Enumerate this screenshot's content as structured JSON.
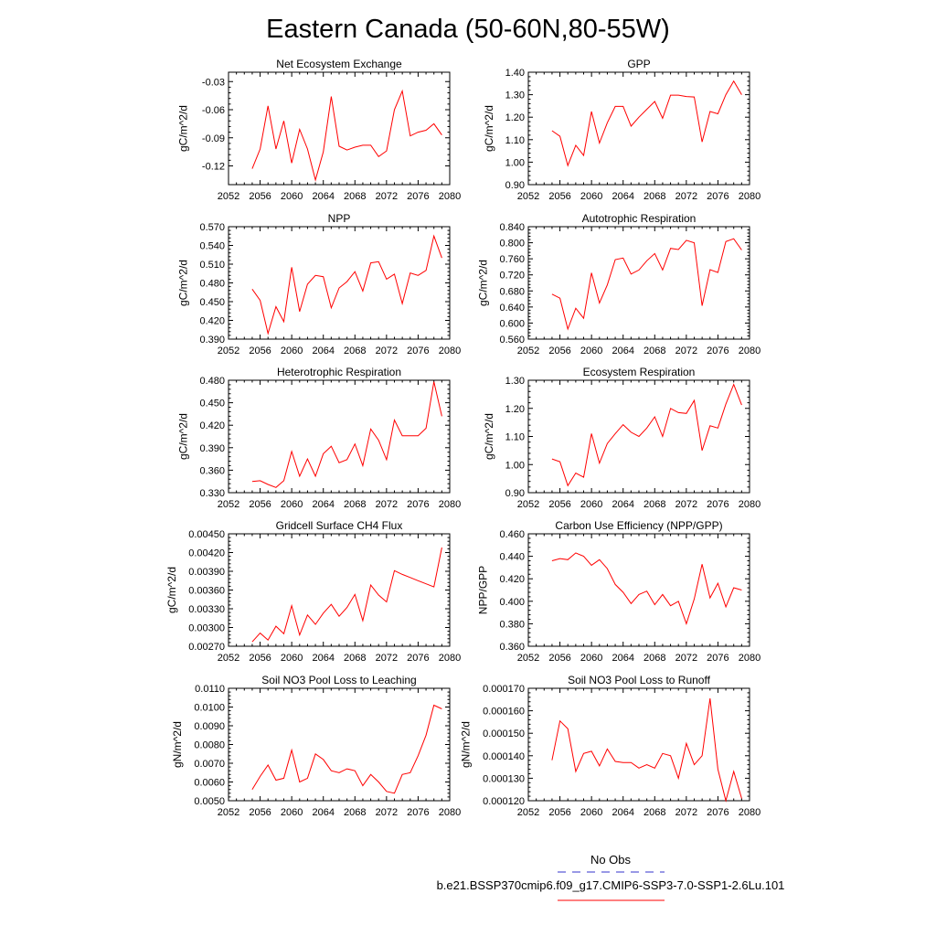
{
  "title": "Eastern Canada (50-60N,80-55W)",
  "legend": {
    "obs_label": "No Obs",
    "obs_color": "#3333cc",
    "model_label": "b.e21.BSSP370cmip6.f09_g17.CMIP6-SSP3-7.0-SSP1-2.6Lu.101",
    "model_color": "#ff0000"
  },
  "chart_data": [
    {
      "type": "line",
      "title": "Net Ecosystem Exchange",
      "ylabel": "gC/m^2/d",
      "xlim": [
        2052,
        2080
      ],
      "ylim": [
        -0.14,
        -0.02
      ],
      "xticks": [
        "2052",
        "2056",
        "2060",
        "2064",
        "2068",
        "2072",
        "2076",
        "2080"
      ],
      "yticks": [
        "-0.12",
        "-0.09",
        "-0.06",
        "-0.03"
      ],
      "x": [
        2055,
        2056,
        2057,
        2058,
        2059,
        2060,
        2061,
        2062,
        2063,
        2064,
        2065,
        2066,
        2067,
        2068,
        2069,
        2070,
        2071,
        2072,
        2073,
        2074,
        2075,
        2076,
        2077,
        2078,
        2079
      ],
      "values": [
        -0.123,
        -0.102,
        -0.056,
        -0.102,
        -0.072,
        -0.117,
        -0.081,
        -0.102,
        -0.135,
        -0.105,
        -0.046,
        -0.099,
        -0.103,
        -0.1,
        -0.098,
        -0.098,
        -0.11,
        -0.104,
        -0.06,
        -0.04,
        -0.088,
        -0.084,
        -0.082,
        -0.075,
        -0.087
      ]
    },
    {
      "type": "line",
      "title": "GPP",
      "ylabel": "gC/m^2/d",
      "xlim": [
        2052,
        2080
      ],
      "ylim": [
        0.9,
        1.4
      ],
      "xticks": [
        "2052",
        "2056",
        "2060",
        "2064",
        "2068",
        "2072",
        "2076",
        "2080"
      ],
      "yticks": [
        "0.90",
        "1.00",
        "1.10",
        "1.20",
        "1.30",
        "1.40"
      ],
      "x": [
        2055,
        2056,
        2057,
        2058,
        2059,
        2060,
        2061,
        2062,
        2063,
        2064,
        2065,
        2066,
        2067,
        2068,
        2069,
        2070,
        2071,
        2072,
        2073,
        2074,
        2075,
        2076,
        2077,
        2078,
        2079
      ],
      "values": [
        1.14,
        1.115,
        0.985,
        1.075,
        1.03,
        1.225,
        1.085,
        1.175,
        1.248,
        1.248,
        1.16,
        1.2,
        1.235,
        1.27,
        1.195,
        1.298,
        1.298,
        1.292,
        1.29,
        1.09,
        1.225,
        1.215,
        1.3,
        1.36,
        1.3
      ]
    },
    {
      "type": "line",
      "title": "NPP",
      "ylabel": "gC/m^2/d",
      "xlim": [
        2052,
        2080
      ],
      "ylim": [
        0.39,
        0.57
      ],
      "xticks": [
        "2052",
        "2056",
        "2060",
        "2064",
        "2068",
        "2072",
        "2076",
        "2080"
      ],
      "yticks": [
        "0.390",
        "0.420",
        "0.450",
        "0.480",
        "0.510",
        "0.540",
        "0.570"
      ],
      "x": [
        2055,
        2056,
        2057,
        2058,
        2059,
        2060,
        2061,
        2062,
        2063,
        2064,
        2065,
        2066,
        2067,
        2068,
        2069,
        2070,
        2071,
        2072,
        2073,
        2074,
        2075,
        2076,
        2077,
        2078,
        2079
      ],
      "values": [
        0.47,
        0.452,
        0.399,
        0.442,
        0.418,
        0.505,
        0.434,
        0.478,
        0.492,
        0.49,
        0.44,
        0.472,
        0.482,
        0.498,
        0.467,
        0.512,
        0.514,
        0.486,
        0.494,
        0.447,
        0.496,
        0.492,
        0.5,
        0.555,
        0.52
      ]
    },
    {
      "type": "line",
      "title": "Autotrophic Respiration",
      "ylabel": "gC/m^2/d",
      "xlim": [
        2052,
        2080
      ],
      "ylim": [
        0.56,
        0.84
      ],
      "xticks": [
        "2052",
        "2056",
        "2060",
        "2064",
        "2068",
        "2072",
        "2076",
        "2080"
      ],
      "yticks": [
        "0.560",
        "0.600",
        "0.640",
        "0.680",
        "0.720",
        "0.760",
        "0.800",
        "0.840"
      ],
      "x": [
        2055,
        2056,
        2057,
        2058,
        2059,
        2060,
        2061,
        2062,
        2063,
        2064,
        2065,
        2066,
        2067,
        2068,
        2069,
        2070,
        2071,
        2072,
        2073,
        2074,
        2075,
        2076,
        2077,
        2078,
        2079
      ],
      "values": [
        0.672,
        0.662,
        0.585,
        0.637,
        0.612,
        0.725,
        0.65,
        0.695,
        0.758,
        0.762,
        0.722,
        0.732,
        0.755,
        0.773,
        0.732,
        0.786,
        0.783,
        0.806,
        0.8,
        0.643,
        0.733,
        0.726,
        0.803,
        0.81,
        0.782
      ]
    },
    {
      "type": "line",
      "title": "Heterotrophic Respiration",
      "ylabel": "gC/m^2/d",
      "xlim": [
        2052,
        2080
      ],
      "ylim": [
        0.33,
        0.48
      ],
      "xticks": [
        "2052",
        "2056",
        "2060",
        "2064",
        "2068",
        "2072",
        "2076",
        "2080"
      ],
      "yticks": [
        "0.330",
        "0.360",
        "0.390",
        "0.420",
        "0.450",
        "0.480"
      ],
      "x": [
        2055,
        2056,
        2057,
        2058,
        2059,
        2060,
        2061,
        2062,
        2063,
        2064,
        2065,
        2066,
        2067,
        2068,
        2069,
        2070,
        2071,
        2072,
        2073,
        2074,
        2075,
        2076,
        2077,
        2078,
        2079
      ],
      "values": [
        0.345,
        0.346,
        0.341,
        0.337,
        0.346,
        0.385,
        0.352,
        0.375,
        0.352,
        0.382,
        0.392,
        0.37,
        0.374,
        0.395,
        0.366,
        0.415,
        0.4,
        0.374,
        0.427,
        0.406,
        0.406,
        0.406,
        0.416,
        0.478,
        0.432
      ]
    },
    {
      "type": "line",
      "title": "Ecosystem Respiration",
      "ylabel": "gC/m^2/d",
      "xlim": [
        2052,
        2080
      ],
      "ylim": [
        0.9,
        1.3
      ],
      "xticks": [
        "2052",
        "2056",
        "2060",
        "2064",
        "2068",
        "2072",
        "2076",
        "2080"
      ],
      "yticks": [
        "0.90",
        "1.00",
        "1.10",
        "1.20",
        "1.30"
      ],
      "x": [
        2055,
        2056,
        2057,
        2058,
        2059,
        2060,
        2061,
        2062,
        2063,
        2064,
        2065,
        2066,
        2067,
        2068,
        2069,
        2070,
        2071,
        2072,
        2073,
        2074,
        2075,
        2076,
        2077,
        2078,
        2079
      ],
      "values": [
        1.02,
        1.01,
        0.925,
        0.97,
        0.955,
        1.11,
        1.005,
        1.075,
        1.11,
        1.142,
        1.115,
        1.1,
        1.13,
        1.17,
        1.1,
        1.2,
        1.185,
        1.182,
        1.228,
        1.05,
        1.138,
        1.13,
        1.215,
        1.285,
        1.212
      ]
    },
    {
      "type": "line",
      "title": "Gridcell Surface CH4 Flux",
      "ylabel": "gC/m^2/d",
      "xlim": [
        2052,
        2080
      ],
      "ylim": [
        0.0027,
        0.0045
      ],
      "xticks": [
        "2052",
        "2056",
        "2060",
        "2064",
        "2068",
        "2072",
        "2076",
        "2080"
      ],
      "yticks": [
        "0.00270",
        "0.00300",
        "0.00330",
        "0.00360",
        "0.00390",
        "0.00420",
        "0.00450"
      ],
      "x": [
        2055,
        2056,
        2057,
        2058,
        2059,
        2060,
        2061,
        2062,
        2063,
        2064,
        2065,
        2066,
        2067,
        2068,
        2069,
        2070,
        2071,
        2072,
        2073,
        2074,
        2075,
        2076,
        2077,
        2078,
        2079
      ],
      "values": [
        0.00277,
        0.00291,
        0.0028,
        0.00302,
        0.0029,
        0.00335,
        0.00288,
        0.0032,
        0.00305,
        0.00323,
        0.00337,
        0.00318,
        0.00332,
        0.00353,
        0.00311,
        0.00368,
        0.00352,
        0.00341,
        0.00391,
        0.00385,
        0.0038,
        0.00375,
        0.0037,
        0.00365,
        0.00428
      ]
    },
    {
      "type": "line",
      "title": "Carbon Use Efficiency (NPP/GPP)",
      "ylabel": "NPP/GPP",
      "xlim": [
        2052,
        2080
      ],
      "ylim": [
        0.36,
        0.46
      ],
      "xticks": [
        "2052",
        "2056",
        "2060",
        "2064",
        "2068",
        "2072",
        "2076",
        "2080"
      ],
      "yticks": [
        "0.360",
        "0.380",
        "0.400",
        "0.420",
        "0.440",
        "0.460"
      ],
      "x": [
        2055,
        2056,
        2057,
        2058,
        2059,
        2060,
        2061,
        2062,
        2063,
        2064,
        2065,
        2066,
        2067,
        2068,
        2069,
        2070,
        2071,
        2072,
        2073,
        2074,
        2075,
        2076,
        2077,
        2078,
        2079
      ],
      "values": [
        0.436,
        0.438,
        0.437,
        0.443,
        0.44,
        0.432,
        0.437,
        0.429,
        0.415,
        0.408,
        0.398,
        0.406,
        0.409,
        0.397,
        0.406,
        0.396,
        0.4,
        0.38,
        0.402,
        0.433,
        0.403,
        0.416,
        0.395,
        0.412,
        0.41
      ]
    },
    {
      "type": "line",
      "title": "Soil NO3 Pool Loss to Leaching",
      "ylabel": "gN/m^2/d",
      "xlim": [
        2052,
        2080
      ],
      "ylim": [
        0.005,
        0.011
      ],
      "xticks": [
        "2052",
        "2056",
        "2060",
        "2064",
        "2068",
        "2072",
        "2076",
        "2080"
      ],
      "yticks": [
        "0.0050",
        "0.0060",
        "0.0070",
        "0.0080",
        "0.0090",
        "0.0100",
        "0.0110"
      ],
      "x": [
        2055,
        2056,
        2057,
        2058,
        2059,
        2060,
        2061,
        2062,
        2063,
        2064,
        2065,
        2066,
        2067,
        2068,
        2069,
        2070,
        2071,
        2072,
        2073,
        2074,
        2075,
        2076,
        2077,
        2078,
        2079
      ],
      "values": [
        0.0056,
        0.0063,
        0.0069,
        0.0061,
        0.0062,
        0.0077,
        0.006,
        0.0062,
        0.0075,
        0.0072,
        0.0066,
        0.0065,
        0.0067,
        0.0066,
        0.0058,
        0.0064,
        0.006,
        0.0055,
        0.0054,
        0.0064,
        0.0065,
        0.0074,
        0.0085,
        0.0101,
        0.0099
      ]
    },
    {
      "type": "line",
      "title": "Soil NO3 Pool Loss to Runoff",
      "ylabel": "gN/m^2/d",
      "xlim": [
        2052,
        2080
      ],
      "ylim": [
        0.00012,
        0.00017
      ],
      "xticks": [
        "2052",
        "2056",
        "2060",
        "2064",
        "2068",
        "2072",
        "2076",
        "2080"
      ],
      "yticks": [
        "0.000120",
        "0.000130",
        "0.000140",
        "0.000150",
        "0.000160",
        "0.000170"
      ],
      "x": [
        2055,
        2056,
        2057,
        2058,
        2059,
        2060,
        2061,
        2062,
        2063,
        2064,
        2065,
        2066,
        2067,
        2068,
        2069,
        2070,
        2071,
        2072,
        2073,
        2074,
        2075,
        2076,
        2077,
        2078,
        2079
      ],
      "values": [
        0.000138,
        0.0001555,
        0.000152,
        0.000133,
        0.000141,
        0.000142,
        0.0001355,
        0.000143,
        0.0001375,
        0.000137,
        0.000137,
        0.0001345,
        0.000136,
        0.0001345,
        0.000141,
        0.00014,
        0.00013,
        0.0001455,
        0.000136,
        0.00014,
        0.0001655,
        0.000134,
        0.00012,
        0.000133,
        0.000121
      ]
    }
  ]
}
